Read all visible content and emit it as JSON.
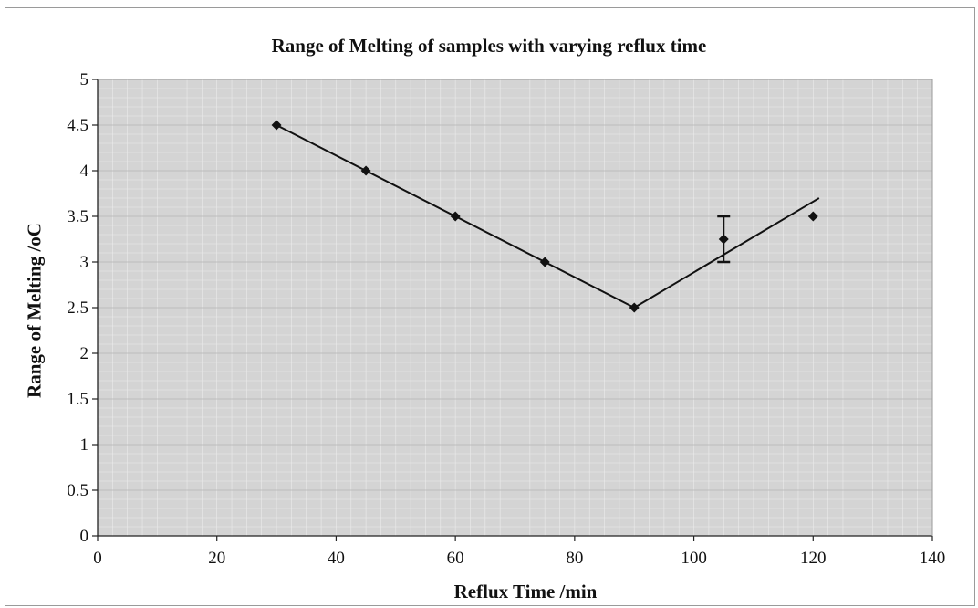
{
  "chart_data": {
    "type": "scatter",
    "title": "Range of Melting of samples with varying reflux time",
    "xlabel": "Reflux Time /min",
    "ylabel": "Range of Melting /oC",
    "xlim": [
      0,
      140
    ],
    "ylim": [
      0,
      5
    ],
    "x_ticks": [
      "0",
      "20",
      "40",
      "60",
      "80",
      "100",
      "120",
      "140"
    ],
    "y_ticks": [
      "0",
      "0.5",
      "1",
      "1.5",
      "2",
      "2.5",
      "3",
      "3.5",
      "4",
      "4.5",
      "5"
    ],
    "grid": true,
    "legend": "none",
    "points": [
      {
        "x": 30,
        "y": 4.5
      },
      {
        "x": 45,
        "y": 4.0
      },
      {
        "x": 60,
        "y": 3.5
      },
      {
        "x": 75,
        "y": 3.0
      },
      {
        "x": 90,
        "y": 2.5
      },
      {
        "x": 105,
        "y": 3.25,
        "error": 0.25
      },
      {
        "x": 120,
        "y": 3.5
      }
    ],
    "trend_lines": [
      {
        "from": [
          30,
          4.5
        ],
        "to": [
          90,
          2.5
        ]
      },
      {
        "from": [
          90,
          2.5
        ],
        "to": [
          121,
          3.7
        ]
      }
    ],
    "colors": {
      "plot_background": "#d4d4d4",
      "marker": "#111111",
      "line": "#111111",
      "grid": "#ececec"
    }
  }
}
